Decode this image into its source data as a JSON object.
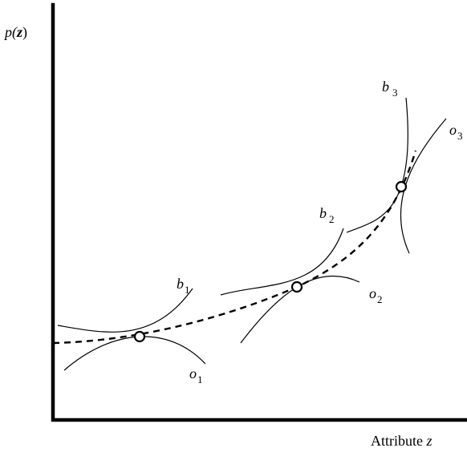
{
  "labels": {
    "y_axis": {
      "p": "p(",
      "z": "z",
      "close": ")"
    },
    "x_axis": {
      "text": "Attribute ",
      "var": "z"
    },
    "b1": {
      "main": "b",
      "sub": "1"
    },
    "b2": {
      "main": "b",
      "sub": "2"
    },
    "b3": {
      "main": "b",
      "sub": "3"
    },
    "o1": {
      "main": "o",
      "sub": "1"
    },
    "o2": {
      "main": "o",
      "sub": "2"
    },
    "o3": {
      "main": "o",
      "sub": "3"
    }
  },
  "colors": {
    "ink": "#000000",
    "background": "#ffffff"
  }
}
